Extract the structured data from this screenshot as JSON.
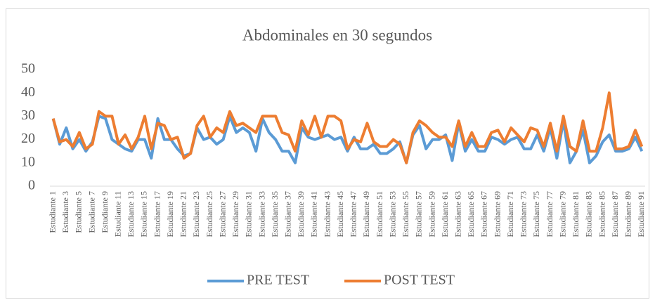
{
  "chart_data": {
    "type": "line",
    "title": "Abdominales en 30 segundos",
    "categories": [
      "Estudiante 1",
      null,
      "Estudiante 3",
      null,
      "Estudiante 5",
      null,
      "Estudiante 7",
      null,
      "Estudiante 9",
      null,
      "Estudiante 11",
      null,
      "Estudiante 13",
      null,
      "Estudiante 15",
      null,
      "Estudiante 17",
      null,
      "Estudiante 19",
      null,
      "Estudiante 21",
      null,
      "Estudiante 23",
      null,
      "Estudiante 25",
      null,
      "Estudiante 27",
      null,
      "Estudiante 29",
      null,
      "Estudiante 31",
      null,
      "Estudiante 33",
      null,
      "Estudiante 35",
      null,
      "Estudiante 37",
      null,
      "Estudiante 39",
      null,
      "Estudiante 41",
      null,
      "Estudiante 43",
      null,
      "Estudiante 45",
      null,
      "Estudiante 47",
      null,
      "Estudiante 49",
      null,
      "Estudiante 51",
      null,
      "Estudiante 53",
      null,
      "Estudiante 55",
      null,
      "Estudiante 57",
      null,
      "Estudiante 59",
      null,
      "Estudiante 61",
      null,
      "Estudiante 63",
      null,
      "Estudiante 65",
      null,
      "Estudiante 67",
      null,
      "Estudiante 69",
      null,
      "Estudiante 71",
      null,
      "Estudiante 73",
      null,
      "Estudiante 75",
      null,
      "Estudiante 77",
      null,
      "Estudiante 79",
      null,
      "Estudiante 81",
      null,
      "Estudiante 83",
      null,
      "Estudiante 85",
      null,
      "Estudiante 87",
      null,
      "Estudiante 89",
      null,
      "Estudiante 91"
    ],
    "series": [
      {
        "name": "PRE TEST",
        "color": "#5b9bd5",
        "values": [
          29,
          18,
          25,
          16,
          20,
          15,
          19,
          30,
          29,
          20,
          18,
          16,
          15,
          20,
          20,
          12,
          29,
          20,
          20,
          16,
          13,
          14,
          25,
          20,
          21,
          18,
          20,
          30,
          23,
          25,
          23,
          15,
          29,
          23,
          20,
          15,
          15,
          10,
          25,
          21,
          20,
          21,
          22,
          20,
          21,
          15,
          21,
          16,
          16,
          18,
          14,
          14,
          16,
          19,
          10,
          22,
          26,
          16,
          20,
          20,
          22,
          11,
          27,
          15,
          20,
          15,
          15,
          21,
          20,
          18,
          20,
          21,
          16,
          16,
          22,
          15,
          25,
          12,
          28,
          10,
          15,
          24,
          10,
          13,
          19,
          22,
          15,
          15,
          16,
          21,
          15
        ]
      },
      {
        "name": "POST TEST",
        "color": "#ed7d31",
        "values": [
          29,
          19,
          20,
          17,
          23,
          16,
          18,
          32,
          30,
          30,
          18,
          22,
          16,
          21,
          30,
          16,
          27,
          26,
          20,
          21,
          12,
          14,
          26,
          30,
          21,
          25,
          23,
          32,
          26,
          27,
          25,
          23,
          30,
          30,
          30,
          23,
          22,
          15,
          28,
          22,
          30,
          21,
          30,
          30,
          28,
          16,
          20,
          19,
          27,
          19,
          17,
          17,
          20,
          18,
          10,
          23,
          28,
          26,
          23,
          21,
          21,
          17,
          28,
          17,
          23,
          17,
          17,
          23,
          24,
          19,
          25,
          22,
          19,
          25,
          24,
          17,
          27,
          15,
          30,
          17,
          15,
          28,
          15,
          15,
          25,
          40,
          16,
          16,
          17,
          24,
          17
        ]
      }
    ],
    "ylim": [
      0,
      50
    ],
    "yticks": [
      0,
      10,
      20,
      30,
      40,
      50
    ],
    "grid": false,
    "legend": "bottom"
  }
}
